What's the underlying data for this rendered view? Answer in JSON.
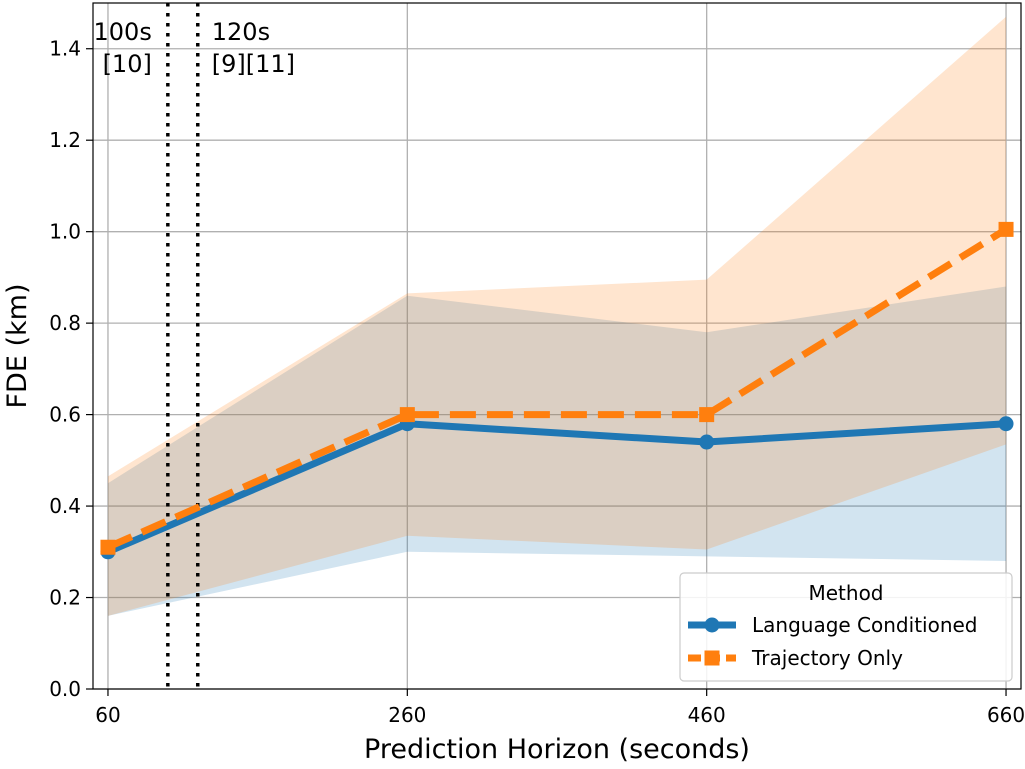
{
  "chart_data": {
    "type": "line",
    "xlabel": "Prediction Horizon (seconds)",
    "ylabel": "FDE (km)",
    "x": [
      60,
      260,
      460,
      660
    ],
    "xticks": [
      60,
      260,
      460,
      660
    ],
    "xtick_labels": [
      "60",
      "260",
      "460",
      "660"
    ],
    "xlim": [
      50,
      670
    ],
    "ylim": [
      0,
      1.5
    ],
    "yticks": [
      0.0,
      0.2,
      0.4,
      0.6,
      0.8,
      1.0,
      1.2,
      1.4
    ],
    "ytick_labels": [
      "0.0",
      "0.2",
      "0.4",
      "0.6",
      "0.8",
      "1.0",
      "1.2",
      "1.4"
    ],
    "grid": true,
    "series": [
      {
        "name": "Language Conditioned",
        "color": "#1f77b4",
        "marker": "circle",
        "linestyle": "solid",
        "values": [
          0.3,
          0.58,
          0.54,
          0.58
        ],
        "band_lower": [
          0.16,
          0.3,
          0.29,
          0.28
        ],
        "band_upper": [
          0.45,
          0.86,
          0.78,
          0.88
        ]
      },
      {
        "name": "Trajectory Only",
        "color": "#ff7f0e",
        "marker": "square",
        "linestyle": "dashed",
        "values": [
          0.31,
          0.6,
          0.6,
          1.005
        ],
        "band_lower": [
          0.16,
          0.335,
          0.305,
          0.535
        ],
        "band_upper": [
          0.465,
          0.865,
          0.895,
          1.47
        ]
      }
    ],
    "vlines": [
      {
        "x": 100,
        "label_top": "100s",
        "label_bottom": "[10]",
        "label_side": "left"
      },
      {
        "x": 120,
        "label_top": "120s",
        "label_bottom": "[9][11]",
        "label_side": "right"
      }
    ],
    "legend": {
      "title": "Method",
      "position": "lower-right"
    }
  }
}
